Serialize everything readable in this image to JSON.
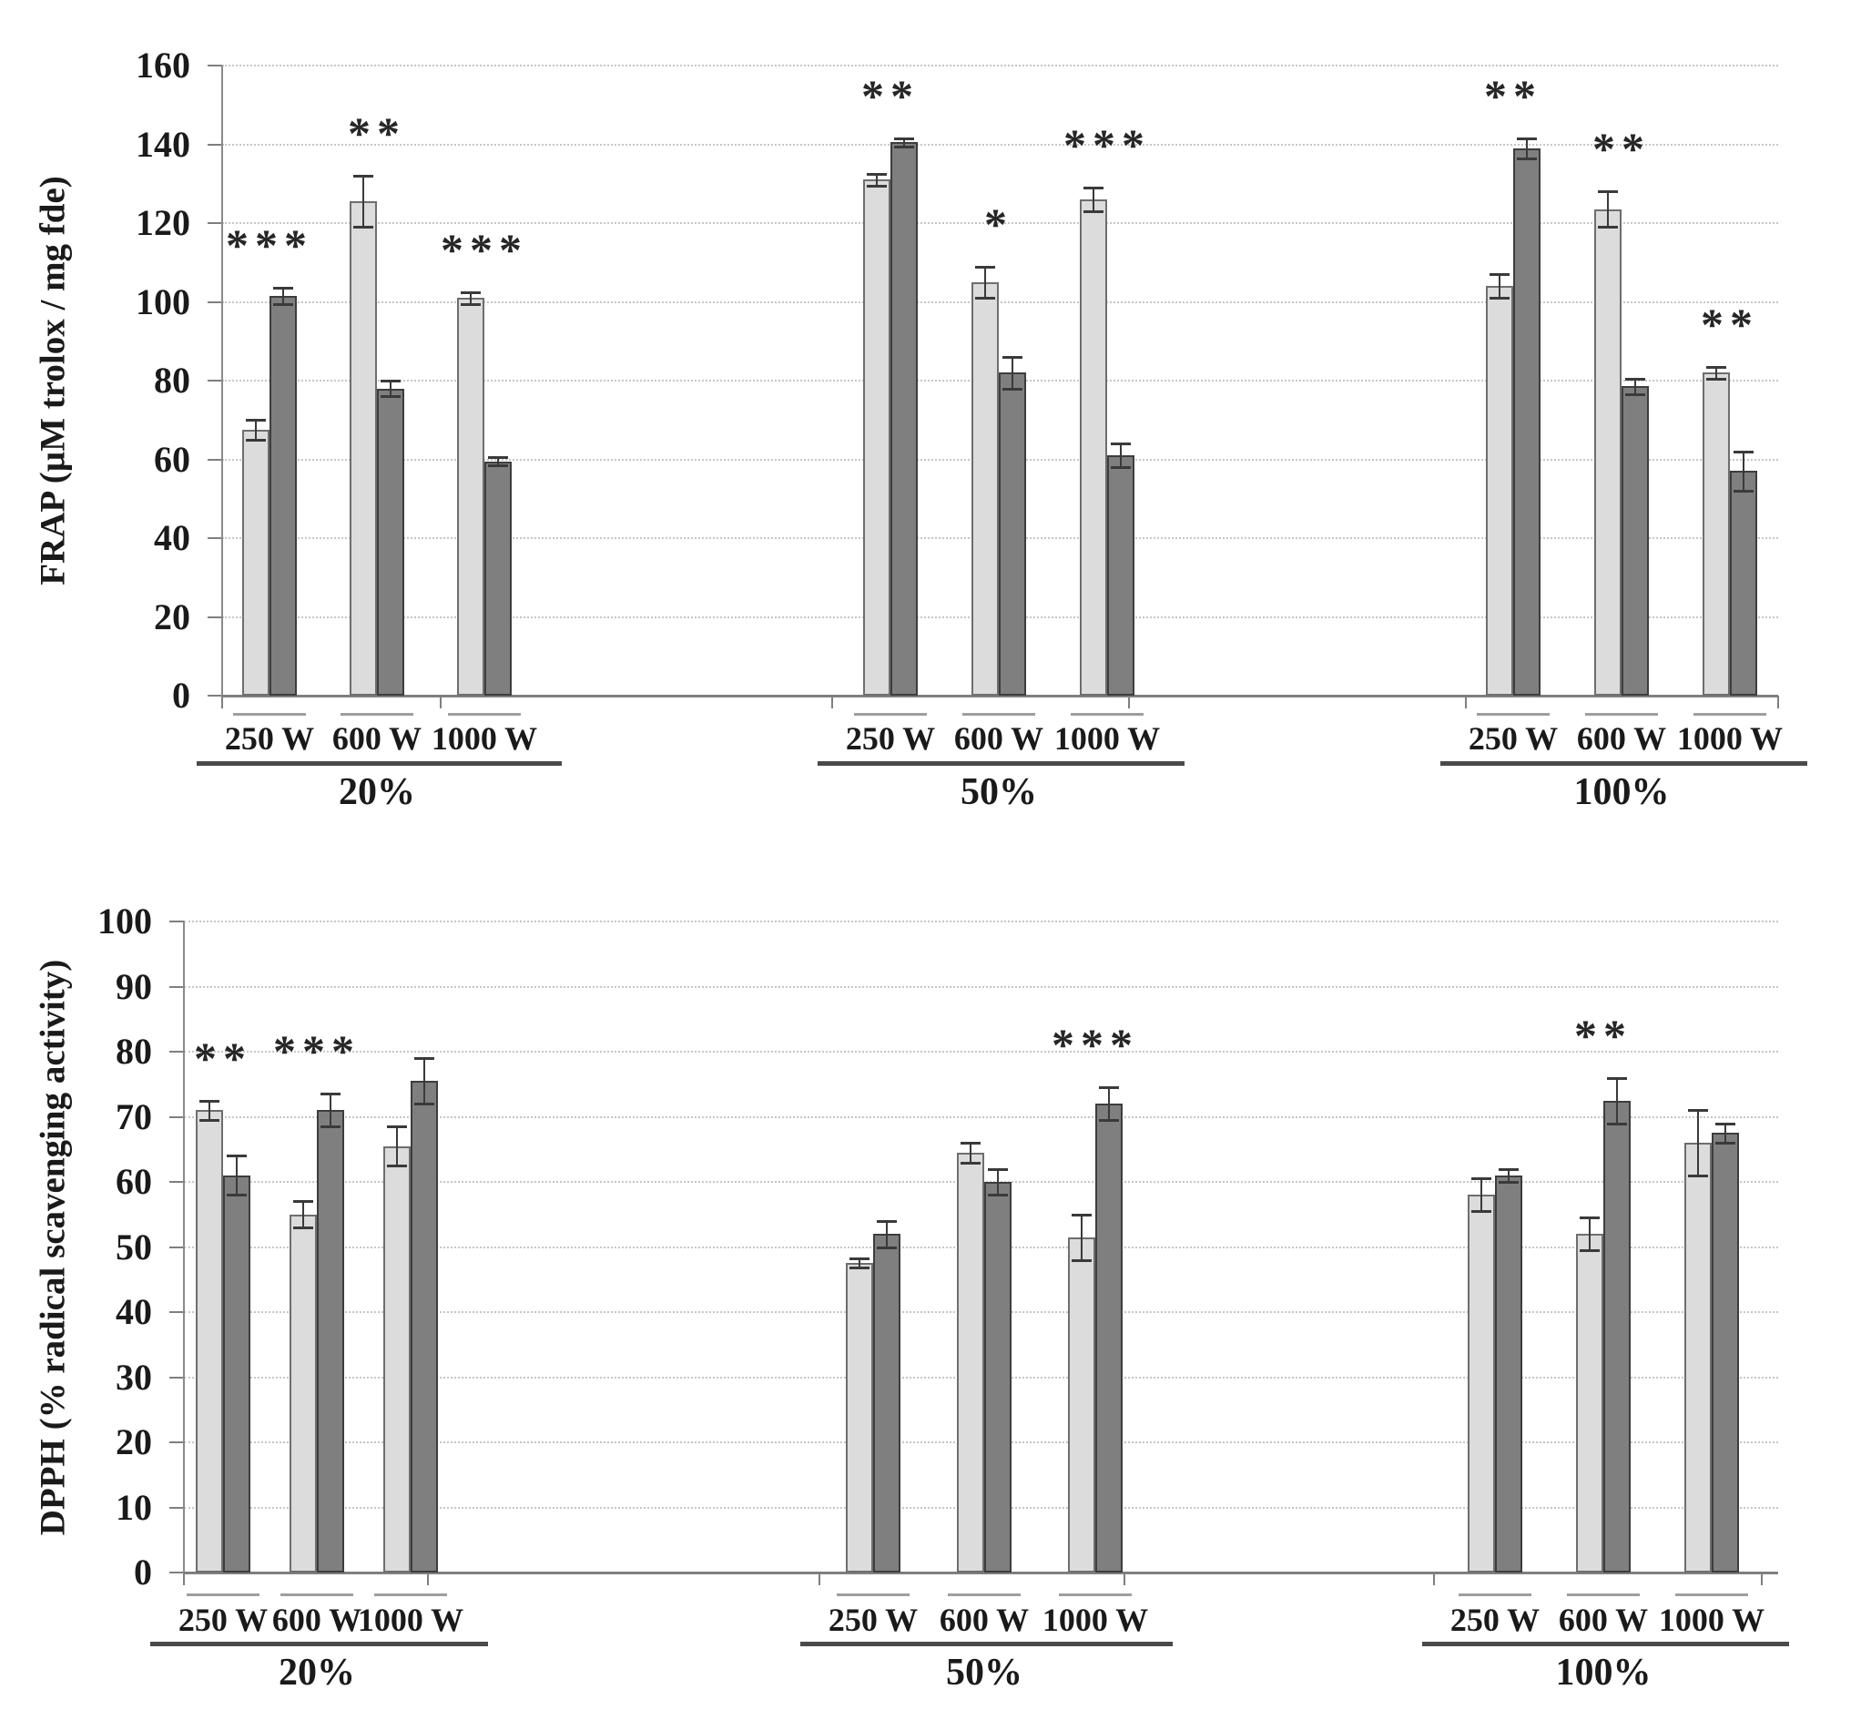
{
  "figure_title": "",
  "series_colors": {
    "light": "#dcdcdc",
    "dark": "#7f7f7f"
  },
  "chart_data": [
    {
      "type": "bar",
      "title": "",
      "ylabel": "FRAP (µM trolox / mg fde)",
      "ylim": [
        0,
        160
      ],
      "ytick_step": 20,
      "grid": true,
      "legend": null,
      "series_names": [
        "light-gray-bar",
        "dark-gray-bar"
      ],
      "groups": [
        {
          "label": "20%",
          "subgroups": [
            {
              "label": "250 W",
              "light": {
                "value": 67.5,
                "err": 2.5
              },
              "dark": {
                "value": 101.5,
                "err": 2
              },
              "sig": "***"
            },
            {
              "label": "600 W",
              "light": {
                "value": 125.5,
                "err": 6.5
              },
              "dark": {
                "value": 78,
                "err": 2
              },
              "sig": "**"
            },
            {
              "label": "1000 W",
              "light": {
                "value": 101,
                "err": 1.5
              },
              "dark": {
                "value": 59.5,
                "err": 1
              },
              "sig": "***"
            }
          ]
        },
        {
          "label": "50%",
          "subgroups": [
            {
              "label": "250 W",
              "light": {
                "value": 131,
                "err": 1.5
              },
              "dark": {
                "value": 140.5,
                "err": 1
              },
              "sig": "**"
            },
            {
              "label": "600 W",
              "light": {
                "value": 105,
                "err": 4
              },
              "dark": {
                "value": 82,
                "err": 4
              },
              "sig": "*"
            },
            {
              "label": "1000 W",
              "light": {
                "value": 126,
                "err": 3
              },
              "dark": {
                "value": 61,
                "err": 3
              },
              "sig": "***"
            }
          ]
        },
        {
          "label": "100%",
          "subgroups": [
            {
              "label": "250 W",
              "light": {
                "value": 104,
                "err": 3
              },
              "dark": {
                "value": 139,
                "err": 2.5
              },
              "sig": "**"
            },
            {
              "label": "600 W",
              "light": {
                "value": 123.5,
                "err": 4.5
              },
              "dark": {
                "value": 78.5,
                "err": 2
              },
              "sig": "**"
            },
            {
              "label": "1000 W",
              "light": {
                "value": 82,
                "err": 1.5
              },
              "dark": {
                "value": 57,
                "err": 5
              },
              "sig": "**"
            }
          ]
        }
      ]
    },
    {
      "type": "bar",
      "title": "",
      "ylabel": "DPPH (% radical scavenging activity)",
      "ylim": [
        0,
        100
      ],
      "ytick_step": 10,
      "grid": true,
      "legend": null,
      "series_names": [
        "light-gray-bar",
        "dark-gray-bar"
      ],
      "groups": [
        {
          "label": "20%",
          "subgroups": [
            {
              "label": "250 W",
              "light": {
                "value": 71,
                "err": 1.5
              },
              "dark": {
                "value": 61,
                "err": 3
              },
              "sig": "**"
            },
            {
              "label": "600 W",
              "light": {
                "value": 55,
                "err": 2
              },
              "dark": {
                "value": 71,
                "err": 2.5
              },
              "sig": "***"
            },
            {
              "label": "1000 W",
              "light": {
                "value": 65.5,
                "err": 3
              },
              "dark": {
                "value": 75.5,
                "err": 3.5
              },
              "sig": null
            }
          ]
        },
        {
          "label": "50%",
          "subgroups": [
            {
              "label": "250 W",
              "light": {
                "value": 47.5,
                "err": 0.7
              },
              "dark": {
                "value": 52,
                "err": 2
              },
              "sig": null
            },
            {
              "label": "600 W",
              "light": {
                "value": 64.5,
                "err": 1.5
              },
              "dark": {
                "value": 60,
                "err": 2
              },
              "sig": null
            },
            {
              "label": "1000 W",
              "light": {
                "value": 51.5,
                "err": 3.5
              },
              "dark": {
                "value": 72,
                "err": 2.5
              },
              "sig": "***"
            }
          ]
        },
        {
          "label": "100%",
          "subgroups": [
            {
              "label": "250 W",
              "light": {
                "value": 58,
                "err": 2.5
              },
              "dark": {
                "value": 61,
                "err": 1
              },
              "sig": null
            },
            {
              "label": "600 W",
              "light": {
                "value": 52,
                "err": 2.5
              },
              "dark": {
                "value": 72.5,
                "err": 3.5
              },
              "sig": "**"
            },
            {
              "label": "1000 W",
              "light": {
                "value": 66,
                "err": 5
              },
              "dark": {
                "value": 67.5,
                "err": 1.5
              },
              "sig": null
            }
          ]
        }
      ]
    }
  ]
}
